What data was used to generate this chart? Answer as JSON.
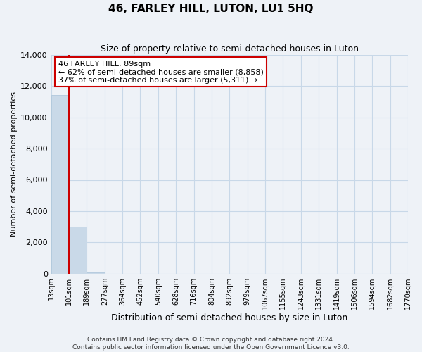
{
  "title": "46, FARLEY HILL, LUTON, LU1 5HQ",
  "subtitle": "Size of property relative to semi-detached houses in Luton",
  "xlabel": "Distribution of semi-detached houses by size in Luton",
  "ylabel": "Number of semi-detached properties",
  "bar_values": [
    11450,
    3020,
    90,
    0,
    0,
    0,
    0,
    0,
    0,
    0,
    0,
    0,
    0,
    0,
    0,
    0,
    0,
    0,
    0,
    0
  ],
  "bar_labels": [
    "13sqm",
    "101sqm",
    "189sqm",
    "277sqm",
    "364sqm",
    "452sqm",
    "540sqm",
    "628sqm",
    "716sqm",
    "804sqm",
    "892sqm",
    "979sqm",
    "1067sqm",
    "1155sqm",
    "1243sqm",
    "1331sqm",
    "1419sqm",
    "1506sqm",
    "1594sqm",
    "1682sqm",
    "1770sqm"
  ],
  "bar_color": "#c9d9e8",
  "bar_edge_color": "#b0c8dc",
  "vline_x": 1,
  "vline_color": "#cc0000",
  "annotation_text": "46 FARLEY HILL: 89sqm\n← 62% of semi-detached houses are smaller (8,858)\n37% of semi-detached houses are larger (5,311) →",
  "annotation_box_facecolor": "white",
  "annotation_box_edgecolor": "#cc0000",
  "ylim": [
    0,
    14000
  ],
  "yticks": [
    0,
    2000,
    4000,
    6000,
    8000,
    10000,
    12000,
    14000
  ],
  "grid_color": "#c8d8e8",
  "footer_line1": "Contains HM Land Registry data © Crown copyright and database right 2024.",
  "footer_line2": "Contains public sector information licensed under the Open Government Licence v3.0.",
  "background_color": "#eef2f7",
  "title_fontsize": 11,
  "subtitle_fontsize": 9,
  "ylabel_fontsize": 8,
  "xlabel_fontsize": 9,
  "ytick_fontsize": 8,
  "xtick_fontsize": 7,
  "annotation_fontsize": 8,
  "footer_fontsize": 6.5
}
